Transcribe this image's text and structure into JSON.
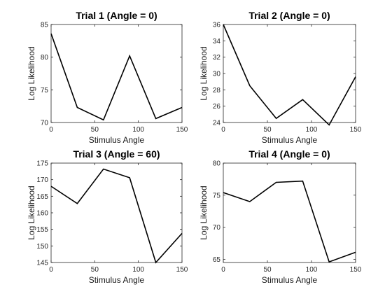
{
  "chart_data": [
    {
      "type": "line",
      "title": "Trial 1 (Angle = 0)",
      "xlabel": "Stimulus Angle",
      "ylabel": "Log Likelihood",
      "x": [
        0,
        30,
        60,
        90,
        120,
        150
      ],
      "y": [
        83.6,
        72.3,
        70.4,
        80.2,
        70.6,
        72.3
      ],
      "xlim": [
        0,
        150
      ],
      "ylim": [
        70,
        85
      ],
      "xticks": [
        0,
        50,
        100,
        150
      ],
      "yticks": [
        70,
        75,
        80,
        85
      ],
      "line_color": "#000000",
      "grid": false
    },
    {
      "type": "line",
      "title": "Trial 2 (Angle = 0)",
      "xlabel": "Stimulus Angle",
      "ylabel": "Log Likelihood",
      "x": [
        0,
        30,
        60,
        90,
        120,
        150
      ],
      "y": [
        36.0,
        28.5,
        24.5,
        26.8,
        23.7,
        29.6
      ],
      "xlim": [
        0,
        150
      ],
      "ylim": [
        24,
        36
      ],
      "xticks": [
        0,
        50,
        100,
        150
      ],
      "yticks": [
        24,
        26,
        28,
        30,
        32,
        34,
        36
      ],
      "line_color": "#000000",
      "grid": false
    },
    {
      "type": "line",
      "title": "Trial 3 (Angle = 60)",
      "xlabel": "Stimulus Angle",
      "ylabel": "Log Likelihood",
      "x": [
        0,
        30,
        60,
        90,
        120,
        150
      ],
      "y": [
        168.0,
        162.8,
        173.2,
        170.6,
        145.0,
        153.8
      ],
      "xlim": [
        0,
        150
      ],
      "ylim": [
        145,
        175
      ],
      "xticks": [
        0,
        50,
        100,
        150
      ],
      "yticks": [
        145,
        150,
        155,
        160,
        165,
        170,
        175
      ],
      "line_color": "#000000",
      "grid": false
    },
    {
      "type": "line",
      "title": "Trial 4 (Angle = 0)",
      "xlabel": "Stimulus Angle",
      "ylabel": "Log Likelihood",
      "x": [
        0,
        30,
        60,
        90,
        120,
        150
      ],
      "y": [
        75.4,
        74.0,
        77.0,
        77.2,
        64.6,
        66.1
      ],
      "xlim": [
        0,
        150
      ],
      "ylim": [
        64.5,
        80
      ],
      "xticks": [
        0,
        50,
        100,
        150
      ],
      "yticks": [
        65,
        70,
        75,
        80
      ],
      "line_color": "#000000",
      "grid": false
    }
  ]
}
